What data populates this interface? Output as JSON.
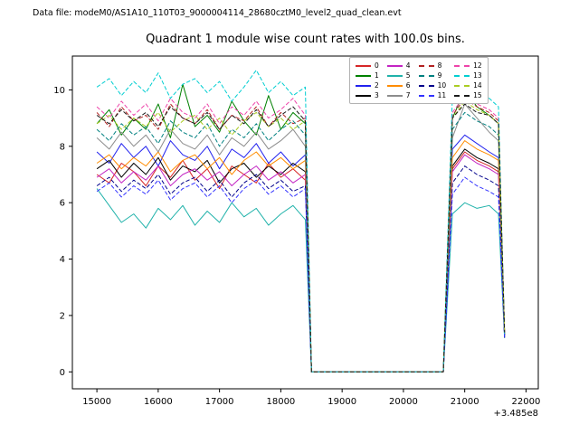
{
  "header": {
    "datafile": "Data file: modeM0/AS1A10_110T03_9000004114_28680cztM0_level2_quad_clean.evt"
  },
  "chart_data": {
    "type": "line",
    "title": "Quadrant 1 module wise count rates with 100.0s bins.",
    "xlabel": "",
    "ylabel": "",
    "x_offset_label": "+3.485e8",
    "grid": false,
    "legend_position": "upper center-right, 4 columns",
    "xlim": [
      14600,
      22200
    ],
    "ylim": [
      -0.6,
      11.2
    ],
    "xticks": [
      15000,
      16000,
      17000,
      18000,
      19000,
      20000,
      21000,
      22000
    ],
    "yticks": [
      0,
      2,
      4,
      6,
      8,
      10
    ],
    "x": [
      15000,
      15200,
      15400,
      15600,
      15800,
      16000,
      16200,
      16400,
      16600,
      16800,
      17000,
      17200,
      17400,
      17600,
      17800,
      18000,
      18200,
      18400,
      18500,
      18700,
      18900,
      19100,
      19300,
      19500,
      19700,
      19900,
      20100,
      20300,
      20500,
      20650,
      20800,
      21000,
      21200,
      21400,
      21550,
      21650
    ],
    "series": [
      {
        "name": "0",
        "color": "#d62728",
        "dashed": false,
        "values": [
          7.0,
          6.7,
          7.4,
          7.1,
          6.6,
          7.3,
          6.9,
          7.5,
          6.8,
          7.2,
          6.5,
          7.3,
          7.0,
          6.7,
          7.4,
          6.9,
          7.2,
          6.8,
          0,
          0,
          0,
          0,
          0,
          0,
          0,
          0,
          0,
          0,
          0,
          0,
          7.2,
          7.8,
          7.5,
          7.3,
          7.1,
          1.3
        ]
      },
      {
        "name": "1",
        "color": "#008000",
        "dashed": false,
        "values": [
          8.8,
          9.3,
          8.4,
          9.0,
          8.6,
          9.5,
          8.3,
          10.2,
          8.7,
          9.1,
          8.5,
          9.6,
          8.9,
          8.4,
          9.8,
          8.6,
          9.2,
          8.8,
          0,
          0,
          0,
          0,
          0,
          0,
          0,
          0,
          0,
          0,
          0,
          0,
          9.0,
          10.0,
          9.4,
          9.1,
          8.8,
          1.4
        ]
      },
      {
        "name": "2",
        "color": "#2222ee",
        "dashed": false,
        "values": [
          7.8,
          7.4,
          8.1,
          7.6,
          8.0,
          7.3,
          8.2,
          7.7,
          7.5,
          8.0,
          7.2,
          7.9,
          7.6,
          8.1,
          7.4,
          7.8,
          7.3,
          7.7,
          0,
          0,
          0,
          0,
          0,
          0,
          0,
          0,
          0,
          0,
          0,
          0,
          7.9,
          8.4,
          8.1,
          7.8,
          7.6,
          1.3
        ]
      },
      {
        "name": "3",
        "color": "#000000",
        "dashed": false,
        "values": [
          7.2,
          7.5,
          6.9,
          7.4,
          7.0,
          7.6,
          6.8,
          7.3,
          7.1,
          7.5,
          6.7,
          7.2,
          7.4,
          6.9,
          7.3,
          7.0,
          7.4,
          7.1,
          0,
          0,
          0,
          0,
          0,
          0,
          0,
          0,
          0,
          0,
          0,
          0,
          7.3,
          7.9,
          7.6,
          7.4,
          7.2,
          1.3
        ]
      },
      {
        "name": "4",
        "color": "#c324c3",
        "dashed": false,
        "values": [
          6.9,
          7.2,
          6.7,
          7.1,
          6.8,
          7.3,
          6.6,
          7.0,
          7.2,
          6.8,
          7.1,
          6.6,
          7.0,
          7.3,
          6.8,
          7.1,
          6.7,
          7.0,
          0,
          0,
          0,
          0,
          0,
          0,
          0,
          0,
          0,
          0,
          0,
          0,
          7.1,
          7.7,
          7.4,
          7.2,
          7.0,
          1.2
        ]
      },
      {
        "name": "5",
        "color": "#20b2aa",
        "dashed": false,
        "values": [
          6.5,
          5.9,
          5.3,
          5.6,
          5.1,
          5.8,
          5.4,
          5.9,
          5.2,
          5.7,
          5.3,
          6.0,
          5.5,
          5.8,
          5.2,
          5.6,
          5.9,
          5.4,
          0,
          0,
          0,
          0,
          0,
          0,
          0,
          0,
          0,
          0,
          0,
          0,
          5.6,
          6.0,
          5.8,
          5.9,
          5.6,
          1.2
        ]
      },
      {
        "name": "6",
        "color": "#ff8c00",
        "dashed": false,
        "values": [
          7.4,
          7.7,
          7.2,
          7.6,
          7.3,
          7.8,
          7.1,
          7.5,
          7.7,
          7.2,
          7.6,
          7.0,
          7.5,
          7.8,
          7.3,
          7.6,
          7.2,
          7.5,
          0,
          0,
          0,
          0,
          0,
          0,
          0,
          0,
          0,
          0,
          0,
          0,
          7.6,
          8.2,
          7.9,
          7.7,
          7.5,
          1.3
        ]
      },
      {
        "name": "7",
        "color": "#8c8c8c",
        "dashed": false,
        "values": [
          8.3,
          7.9,
          8.5,
          8.0,
          8.4,
          7.8,
          8.6,
          8.1,
          7.9,
          8.4,
          7.7,
          8.3,
          8.0,
          8.5,
          7.9,
          8.2,
          8.6,
          8.0,
          0,
          0,
          0,
          0,
          0,
          0,
          0,
          0,
          0,
          0,
          0,
          0,
          8.3,
          9.5,
          9.0,
          8.5,
          8.2,
          1.4
        ]
      },
      {
        "name": "8",
        "color": "#b22222",
        "dashed": true,
        "values": [
          9.2,
          8.7,
          9.4,
          8.9,
          9.1,
          8.6,
          9.5,
          9.0,
          8.8,
          9.3,
          8.6,
          9.1,
          8.9,
          9.4,
          8.7,
          9.2,
          8.8,
          9.0,
          0,
          0,
          0,
          0,
          0,
          0,
          0,
          0,
          0,
          0,
          0,
          0,
          9.1,
          9.7,
          9.4,
          9.2,
          8.9,
          1.4
        ]
      },
      {
        "name": "9",
        "color": "#008080",
        "dashed": true,
        "values": [
          8.6,
          8.2,
          8.8,
          8.4,
          8.7,
          8.1,
          8.9,
          8.5,
          8.3,
          8.8,
          8.0,
          8.6,
          8.3,
          8.8,
          8.2,
          8.6,
          8.9,
          8.4,
          0,
          0,
          0,
          0,
          0,
          0,
          0,
          0,
          0,
          0,
          0,
          0,
          8.6,
          9.2,
          8.9,
          8.7,
          8.4,
          1.3
        ]
      },
      {
        "name": "10",
        "color": "#00008b",
        "dashed": true,
        "values": [
          6.6,
          6.9,
          6.4,
          6.8,
          6.5,
          7.0,
          6.3,
          6.7,
          6.9,
          6.4,
          6.8,
          6.2,
          6.7,
          7.0,
          6.5,
          6.8,
          6.4,
          6.6,
          0,
          0,
          0,
          0,
          0,
          0,
          0,
          0,
          0,
          0,
          0,
          0,
          6.7,
          7.3,
          7.0,
          6.8,
          6.6,
          1.2
        ]
      },
      {
        "name": "11",
        "color": "#3333ff",
        "dashed": true,
        "values": [
          6.4,
          6.7,
          6.2,
          6.6,
          6.3,
          6.8,
          6.1,
          6.5,
          6.7,
          6.2,
          6.6,
          6.0,
          6.5,
          6.8,
          6.3,
          6.6,
          6.2,
          6.5,
          0,
          0,
          0,
          0,
          0,
          0,
          0,
          0,
          0,
          0,
          0,
          0,
          6.3,
          6.9,
          6.6,
          6.4,
          6.2,
          1.2
        ]
      },
      {
        "name": "12",
        "color": "#ee44aa",
        "dashed": true,
        "values": [
          9.4,
          9.0,
          9.6,
          9.1,
          9.5,
          8.9,
          9.7,
          9.2,
          9.0,
          9.5,
          8.8,
          9.4,
          9.1,
          9.6,
          9.0,
          9.3,
          9.7,
          9.1,
          0,
          0,
          0,
          0,
          0,
          0,
          0,
          0,
          0,
          0,
          0,
          0,
          9.2,
          9.8,
          9.5,
          9.3,
          9.0,
          1.4
        ]
      },
      {
        "name": "13",
        "color": "#00ced1",
        "dashed": true,
        "values": [
          10.1,
          10.4,
          9.8,
          10.3,
          9.9,
          10.6,
          9.7,
          10.2,
          10.4,
          9.9,
          10.3,
          9.6,
          10.1,
          10.7,
          9.9,
          10.3,
          9.8,
          10.1,
          0,
          0,
          0,
          0,
          0,
          0,
          0,
          0,
          0,
          0,
          0,
          0,
          9.8,
          10.2,
          9.9,
          9.7,
          9.4,
          1.3
        ]
      },
      {
        "name": "14",
        "color": "#aacc22",
        "dashed": true,
        "values": [
          8.8,
          9.1,
          8.6,
          9.0,
          8.7,
          9.2,
          8.5,
          8.9,
          9.1,
          8.6,
          9.0,
          8.4,
          8.9,
          9.2,
          8.7,
          9.0,
          8.6,
          8.9,
          0,
          0,
          0,
          0,
          0,
          0,
          0,
          0,
          0,
          0,
          0,
          0,
          9.0,
          9.6,
          9.3,
          9.1,
          8.8,
          1.4
        ]
      },
      {
        "name": "15",
        "color": "#1a1a1a",
        "dashed": true,
        "values": [
          9.1,
          8.8,
          9.3,
          8.9,
          9.2,
          8.7,
          9.4,
          9.0,
          8.8,
          9.2,
          8.6,
          9.1,
          8.8,
          9.3,
          8.7,
          9.1,
          9.4,
          8.9,
          0,
          0,
          0,
          0,
          0,
          0,
          0,
          0,
          0,
          0,
          0,
          0,
          9.0,
          9.5,
          9.2,
          9.1,
          8.8,
          1.4
        ]
      }
    ]
  }
}
